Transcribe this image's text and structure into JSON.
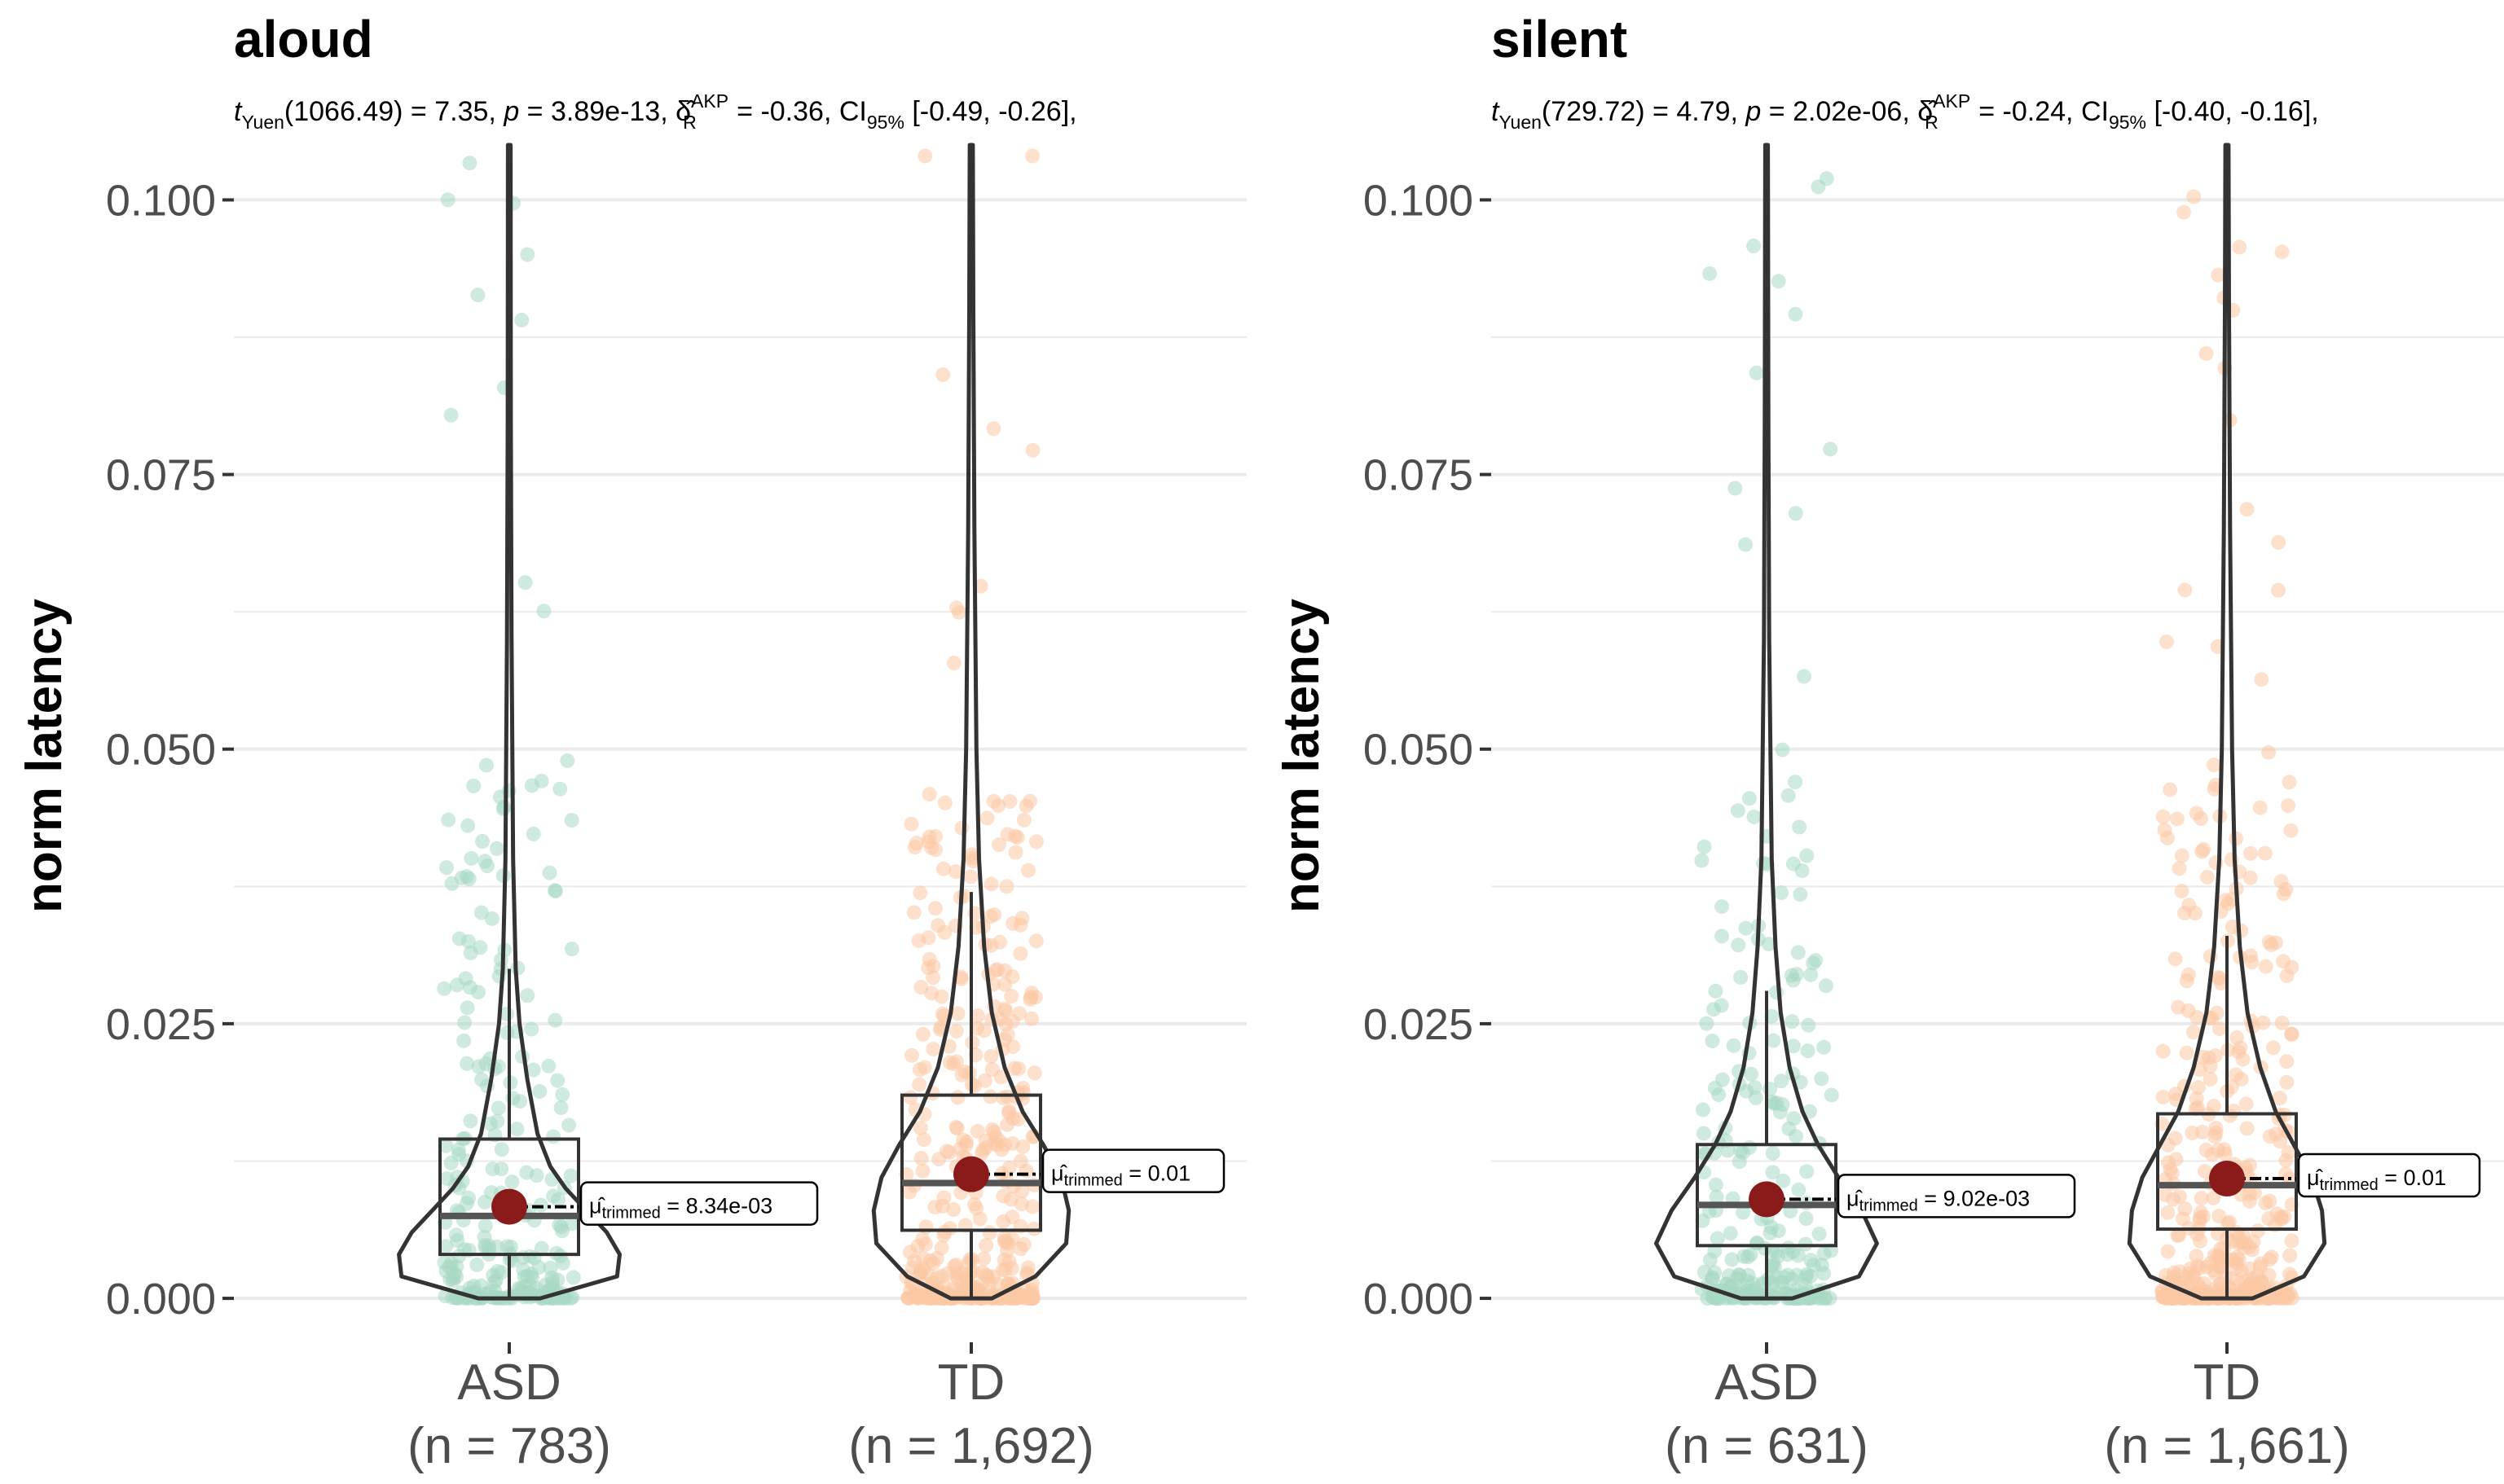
{
  "chart_data": [
    {
      "type": "violin-box-scatter",
      "title": "aloud",
      "subtitle": {
        "t_label": "Yuen",
        "df": "1066.49",
        "t": "7.35",
        "p": "3.89e-13",
        "delta_sup": "AKP",
        "delta_sub": "R",
        "delta": "-0.36",
        "ci_sub": "95%",
        "ci": "[-0.49, -0.26],"
      },
      "ylabel": "norm latency",
      "ylim": [
        -0.004,
        0.105
      ],
      "yticks": [
        "0.000",
        "0.025",
        "0.050",
        "0.075",
        "0.100"
      ],
      "ytick_values": [
        0,
        0.025,
        0.05,
        0.075,
        0.1
      ],
      "groups": [
        {
          "name": "ASD",
          "n_label": "(n = 783)",
          "color": "#a8d8c2",
          "q1": 0.004,
          "median": 0.0075,
          "q3": 0.0145,
          "whisker_low": 0.0,
          "whisker_high": 0.03,
          "mean": 0.00834,
          "mean_label_main": "μ̂",
          "mean_label_sub": "trimmed",
          "mean_label_value": " = 8.34e-03",
          "violin_widths": [
            [
              0.0,
              0.12
            ],
            [
              0.002,
              0.42
            ],
            [
              0.004,
              0.43
            ],
            [
              0.006,
              0.38
            ],
            [
              0.008,
              0.3
            ],
            [
              0.01,
              0.22
            ],
            [
              0.012,
              0.16
            ],
            [
              0.015,
              0.11
            ],
            [
              0.02,
              0.07
            ],
            [
              0.025,
              0.04
            ],
            [
              0.03,
              0.025
            ],
            [
              0.04,
              0.015
            ],
            [
              0.06,
              0.009
            ],
            [
              0.08,
              0.006
            ],
            [
              0.105,
              0.005
            ]
          ]
        },
        {
          "name": "TD",
          "n_label": "(n = 1,692)",
          "color": "#fcc9a4",
          "q1": 0.0062,
          "median": 0.0105,
          "q3": 0.0185,
          "whisker_low": 0.0,
          "whisker_high": 0.037,
          "mean": 0.0113,
          "mean_label_main": "μ̂",
          "mean_label_sub": "trimmed",
          "mean_label_value": " = 0.01",
          "violin_widths": [
            [
              0.0,
              0.08
            ],
            [
              0.002,
              0.25
            ],
            [
              0.005,
              0.37
            ],
            [
              0.008,
              0.38
            ],
            [
              0.011,
              0.35
            ],
            [
              0.014,
              0.28
            ],
            [
              0.017,
              0.2
            ],
            [
              0.021,
              0.13
            ],
            [
              0.026,
              0.08
            ],
            [
              0.032,
              0.05
            ],
            [
              0.04,
              0.03
            ],
            [
              0.05,
              0.02
            ],
            [
              0.07,
              0.012
            ],
            [
              0.09,
              0.008
            ],
            [
              0.105,
              0.006
            ]
          ]
        }
      ]
    },
    {
      "type": "violin-box-scatter",
      "title": "silent",
      "subtitle": {
        "t_label": "Yuen",
        "df": "729.72",
        "t": "4.79",
        "p": "2.02e-06",
        "delta_sup": "AKP",
        "delta_sub": "R",
        "delta": "-0.24",
        "ci_sub": "95%",
        "ci": "[-0.40, -0.16],"
      },
      "ylabel": "norm latency",
      "ylim": [
        -0.004,
        0.105
      ],
      "yticks": [
        "0.000",
        "0.025",
        "0.050",
        "0.075",
        "0.100"
      ],
      "ytick_values": [
        0,
        0.025,
        0.05,
        0.075,
        0.1
      ],
      "groups": [
        {
          "name": "ASD",
          "n_label": "(n = 631)",
          "color": "#a8d8c2",
          "q1": 0.0048,
          "median": 0.0085,
          "q3": 0.014,
          "whisker_low": 0.0,
          "whisker_high": 0.028,
          "mean": 0.00902,
          "mean_label_main": "μ̂",
          "mean_label_sub": "trimmed",
          "mean_label_value": " = 9.02e-03",
          "violin_widths": [
            [
              0.0,
              0.1
            ],
            [
              0.002,
              0.36
            ],
            [
              0.005,
              0.43
            ],
            [
              0.008,
              0.37
            ],
            [
              0.011,
              0.28
            ],
            [
              0.014,
              0.2
            ],
            [
              0.017,
              0.14
            ],
            [
              0.021,
              0.09
            ],
            [
              0.026,
              0.055
            ],
            [
              0.032,
              0.035
            ],
            [
              0.04,
              0.02
            ],
            [
              0.06,
              0.01
            ],
            [
              0.08,
              0.007
            ],
            [
              0.105,
              0.005
            ]
          ]
        },
        {
          "name": "TD",
          "n_label": "(n = 1,661)",
          "color": "#fcc9a4",
          "q1": 0.0063,
          "median": 0.0103,
          "q3": 0.0168,
          "whisker_low": 0.0,
          "whisker_high": 0.033,
          "mean": 0.0109,
          "mean_label_main": "μ̂",
          "mean_label_sub": "trimmed",
          "mean_label_value": " = 0.01",
          "violin_widths": [
            [
              0.0,
              0.1
            ],
            [
              0.002,
              0.3
            ],
            [
              0.005,
              0.38
            ],
            [
              0.008,
              0.37
            ],
            [
              0.011,
              0.33
            ],
            [
              0.014,
              0.26
            ],
            [
              0.017,
              0.19
            ],
            [
              0.021,
              0.13
            ],
            [
              0.026,
              0.08
            ],
            [
              0.032,
              0.05
            ],
            [
              0.04,
              0.03
            ],
            [
              0.05,
              0.02
            ],
            [
              0.07,
              0.012
            ],
            [
              0.09,
              0.008
            ],
            [
              0.105,
              0.006
            ]
          ]
        }
      ]
    }
  ]
}
